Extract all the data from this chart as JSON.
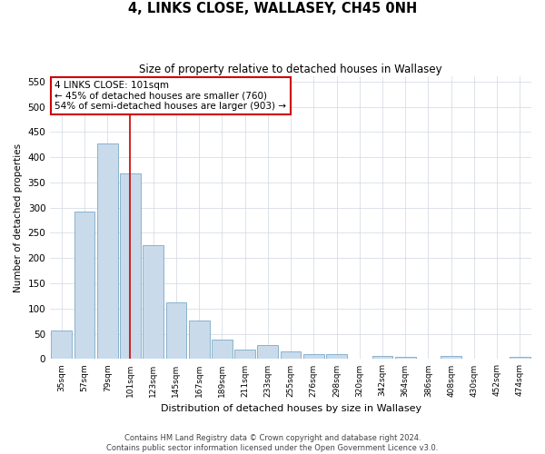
{
  "title": "4, LINKS CLOSE, WALLASEY, CH45 0NH",
  "subtitle": "Size of property relative to detached houses in Wallasey",
  "xlabel": "Distribution of detached houses by size in Wallasey",
  "ylabel": "Number of detached properties",
  "categories": [
    "35sqm",
    "57sqm",
    "79sqm",
    "101sqm",
    "123sqm",
    "145sqm",
    "167sqm",
    "189sqm",
    "211sqm",
    "233sqm",
    "255sqm",
    "276sqm",
    "298sqm",
    "320sqm",
    "342sqm",
    "364sqm",
    "386sqm",
    "408sqm",
    "430sqm",
    "452sqm",
    "474sqm"
  ],
  "values": [
    57,
    292,
    428,
    368,
    225,
    113,
    76,
    39,
    18,
    28,
    15,
    10,
    10,
    0,
    6,
    4,
    0,
    6,
    0,
    0,
    4
  ],
  "bar_color": "#c9daea",
  "bar_edge_color": "#7aaac8",
  "vline_x_index": 3,
  "vline_color": "#cc0000",
  "annotation_line1": "4 LINKS CLOSE: 101sqm",
  "annotation_line2": "← 45% of detached houses are smaller (760)",
  "annotation_line3": "54% of semi-detached houses are larger (903) →",
  "annotation_box_color": "#ffffff",
  "annotation_box_edge_color": "#cc0000",
  "ylim": [
    0,
    560
  ],
  "yticks": [
    0,
    50,
    100,
    150,
    200,
    250,
    300,
    350,
    400,
    450,
    500,
    550
  ],
  "footer_line1": "Contains HM Land Registry data © Crown copyright and database right 2024.",
  "footer_line2": "Contains public sector information licensed under the Open Government Licence v3.0.",
  "background_color": "#ffffff",
  "grid_color": "#d0d8e0"
}
